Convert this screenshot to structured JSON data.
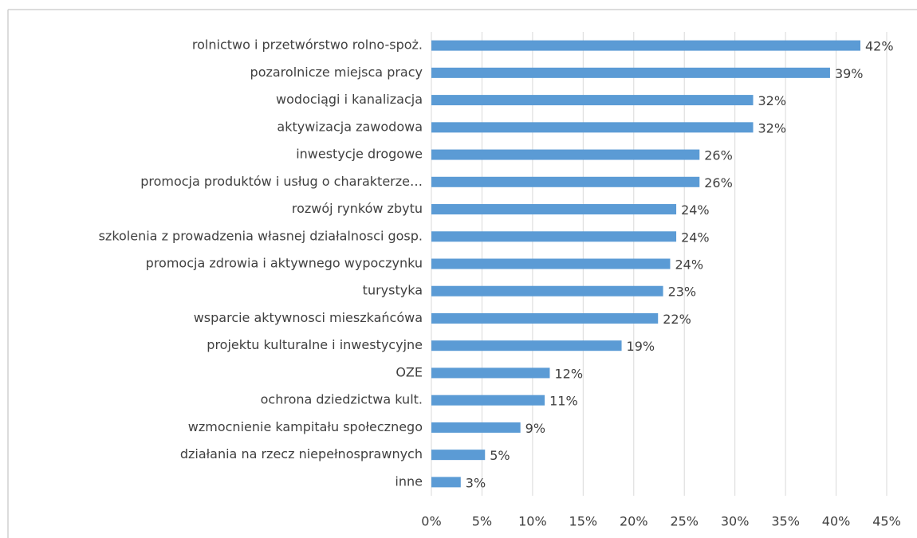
{
  "chart_data": {
    "type": "bar",
    "orientation": "horizontal",
    "categories": [
      "rolnictwo i przetwórstwo rolno-spoż.",
      "pozarolnicze miejsca pracy",
      "wodociągi i kanalizacja",
      "aktywizacja zawodowa",
      "inwestycje drogowe",
      "promocja produktów i usług o charakterze…",
      "rozwój rynków zbytu",
      "szkolenia z prowadzenia własnej działalnosci gosp.",
      "promocja zdrowia i aktywnego wypoczynku",
      "turystyka",
      "wsparcie aktywnosci mieszkańcówa",
      "projektu kulturalne i inwestycyjne",
      "OZE",
      "ochrona dziedzictwa kult.",
      "wzmocnienie kampitału społecznego",
      "działania na rzecz niepełnosprawnych",
      "inne"
    ],
    "values": [
      42.4,
      39.4,
      31.8,
      31.8,
      26.5,
      26.5,
      24.2,
      24.2,
      23.6,
      22.9,
      22.4,
      18.8,
      11.7,
      11.2,
      8.8,
      5.3,
      2.9
    ],
    "value_labels": [
      "42%",
      "39%",
      "32%",
      "32%",
      "26%",
      "26%",
      "24%",
      "24%",
      "24%",
      "23%",
      "22%",
      "19%",
      "12%",
      "11%",
      "9%",
      "5%",
      "3%"
    ],
    "color": "#5b9bd5",
    "xlim": [
      0,
      45
    ],
    "xticks": [
      {
        "value": 0,
        "label": "0%"
      },
      {
        "value": 5,
        "label": "5%"
      },
      {
        "value": 10,
        "label": "10%"
      },
      {
        "value": 15,
        "label": "15%"
      },
      {
        "value": 20,
        "label": "20%"
      },
      {
        "value": 25,
        "label": "25%"
      },
      {
        "value": 30,
        "label": "30%"
      },
      {
        "value": 35,
        "label": "35%"
      },
      {
        "value": 40,
        "label": "40%"
      },
      {
        "value": 45,
        "label": "45%"
      }
    ],
    "grid": true
  }
}
